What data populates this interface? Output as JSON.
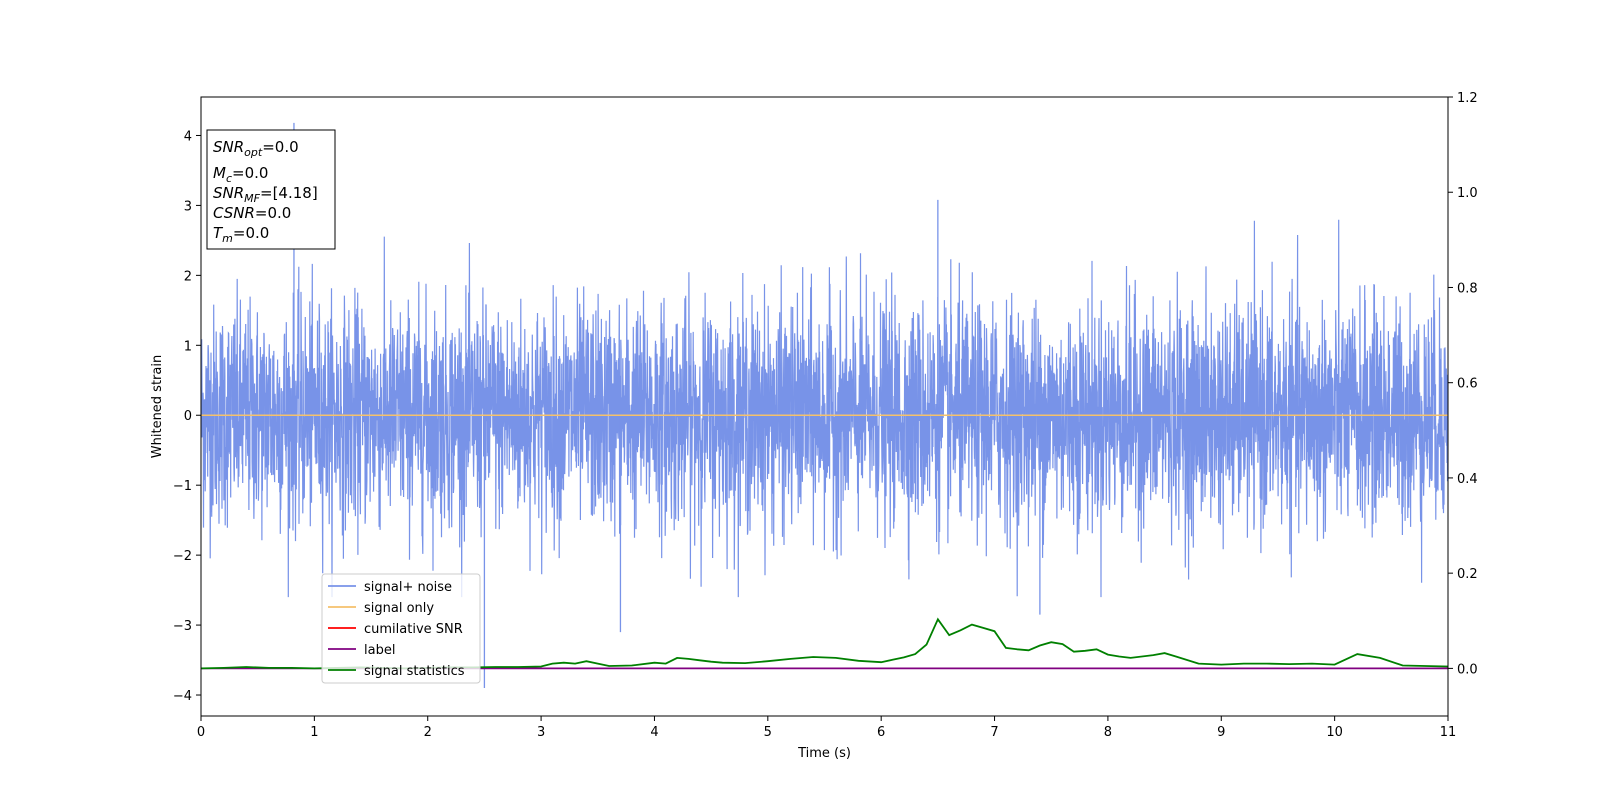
{
  "chart_data": {
    "type": "line",
    "xlabel": "Time (s)",
    "ylabel": "Whitened strain",
    "xlim": [
      0,
      11
    ],
    "ylim": [
      -4.3,
      4.55
    ],
    "y2lim": [
      -0.1,
      1.2
    ],
    "x_ticks": [
      0,
      1,
      2,
      3,
      4,
      5,
      6,
      7,
      8,
      9,
      10,
      11
    ],
    "y_ticks": [
      -4,
      -3,
      -2,
      -1,
      0,
      1,
      2,
      3,
      4
    ],
    "y2_ticks": [
      0.0,
      0.2,
      0.4,
      0.6,
      0.8,
      1.0,
      1.2
    ],
    "grid": false,
    "legend_position": "lower-left",
    "colors": {
      "signal_noise": "#7893e8",
      "signal_only": "#f5c16b",
      "cumulative_snr": "#ff0000",
      "label": "#800080",
      "signal_statistics": "#008000"
    },
    "series": [
      {
        "name": "signal+ noise",
        "axis": "left",
        "description_of_values": "whitened noise, approximately zero mean, std ~0.8, spikes to ~3",
        "notable_extremes": [
          {
            "x": 0.82,
            "y": 4.18
          },
          {
            "x": 2.5,
            "y": -3.9
          },
          {
            "x": 3.7,
            "y": -3.1
          },
          {
            "x": 6.5,
            "y": 3.08
          },
          {
            "x": 7.4,
            "y": -2.85
          }
        ]
      },
      {
        "name": "signal only",
        "axis": "left",
        "x": [
          0,
          11
        ],
        "y": [
          0,
          0
        ]
      },
      {
        "name": "cumilative SNR",
        "axis": "right",
        "x": [],
        "y": []
      },
      {
        "name": "label",
        "axis": "right",
        "x": [
          0,
          11
        ],
        "y": [
          0,
          0
        ]
      },
      {
        "name": "signal statistics",
        "axis": "right",
        "x": [
          0,
          0.2,
          0.4,
          0.6,
          0.8,
          1.0,
          1.2,
          1.4,
          1.6,
          1.8,
          2.0,
          2.2,
          2.4,
          2.6,
          2.8,
          3.0,
          3.1,
          3.2,
          3.3,
          3.4,
          3.5,
          3.6,
          3.8,
          4.0,
          4.1,
          4.2,
          4.3,
          4.4,
          4.5,
          4.6,
          4.8,
          5.0,
          5.2,
          5.4,
          5.6,
          5.8,
          6.0,
          6.1,
          6.2,
          6.3,
          6.4,
          6.5,
          6.6,
          6.7,
          6.8,
          6.9,
          7.0,
          7.1,
          7.2,
          7.3,
          7.4,
          7.5,
          7.6,
          7.7,
          7.8,
          7.9,
          8.0,
          8.1,
          8.2,
          8.4,
          8.5,
          8.6,
          8.8,
          9.0,
          9.2,
          9.4,
          9.6,
          9.8,
          10.0,
          10.2,
          10.4,
          10.6,
          10.8,
          11.0
        ],
        "y": [
          0.0,
          0.001,
          0.003,
          0.001,
          0.001,
          0.0,
          0.001,
          0.002,
          0.001,
          0.0,
          0.001,
          0.002,
          0.002,
          0.003,
          0.003,
          0.004,
          0.01,
          0.012,
          0.01,
          0.015,
          0.01,
          0.005,
          0.006,
          0.012,
          0.01,
          0.022,
          0.02,
          0.017,
          0.014,
          0.012,
          0.011,
          0.015,
          0.02,
          0.024,
          0.022,
          0.016,
          0.013,
          0.018,
          0.023,
          0.03,
          0.05,
          0.103,
          0.07,
          0.08,
          0.092,
          0.085,
          0.078,
          0.043,
          0.04,
          0.038,
          0.048,
          0.055,
          0.051,
          0.035,
          0.037,
          0.04,
          0.029,
          0.025,
          0.022,
          0.028,
          0.032,
          0.025,
          0.01,
          0.008,
          0.01,
          0.01,
          0.009,
          0.01,
          0.008,
          0.03,
          0.022,
          0.006,
          0.005,
          0.004
        ]
      }
    ],
    "annotation_box": {
      "lines": [
        {
          "base": "SNR",
          "sub": "opt",
          "rest": "=0.0"
        },
        {
          "base": "M",
          "sub": "c",
          "rest": "=0.0"
        },
        {
          "base": "SNR",
          "sub": "MF",
          "rest": "=[4.18]"
        },
        {
          "base": "CSNR",
          "sub": "",
          "rest": "=0.0"
        },
        {
          "base": "T",
          "sub": "m",
          "rest": "=0.0"
        }
      ]
    }
  }
}
